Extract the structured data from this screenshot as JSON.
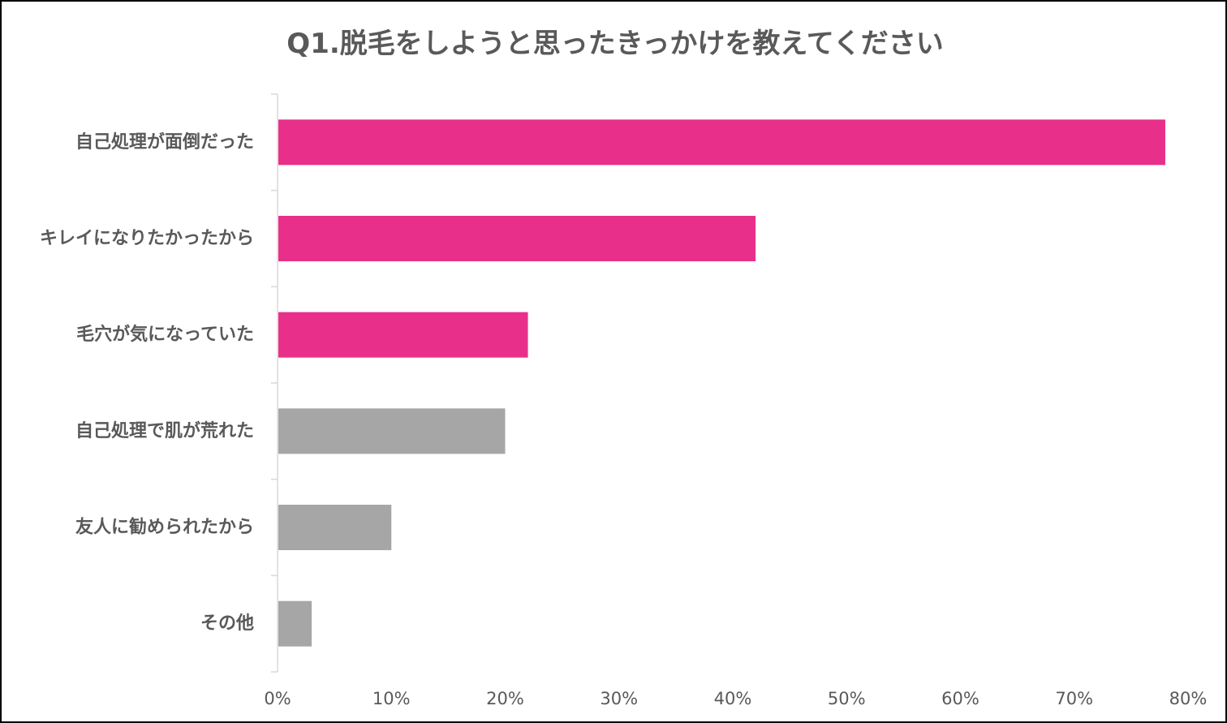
{
  "chart_data": {
    "type": "bar",
    "orientation": "horizontal",
    "title": "Q1.脱毛をしようと思ったきっかけを教えてください",
    "xlabel": "",
    "ylabel": "",
    "categories": [
      "自己処理が面倒だった",
      "キレイになりたかったから",
      "毛穴が気になっていた",
      "自己処理で肌が荒れた",
      "友人に勧められたから",
      "その他"
    ],
    "values": [
      78,
      42,
      22,
      20,
      10,
      3
    ],
    "bar_colors": [
      "#e8308a",
      "#e8308a",
      "#e8308a",
      "#a6a6a6",
      "#a6a6a6",
      "#a6a6a6"
    ],
    "xlim": [
      0,
      80
    ],
    "ticks": [
      "0%",
      "10%",
      "20%",
      "30%",
      "40%",
      "50%",
      "60%",
      "70%",
      "80%"
    ],
    "tick_values": [
      0,
      10,
      20,
      30,
      40,
      50,
      60,
      70,
      80
    ],
    "grid": false,
    "legend": "none"
  }
}
